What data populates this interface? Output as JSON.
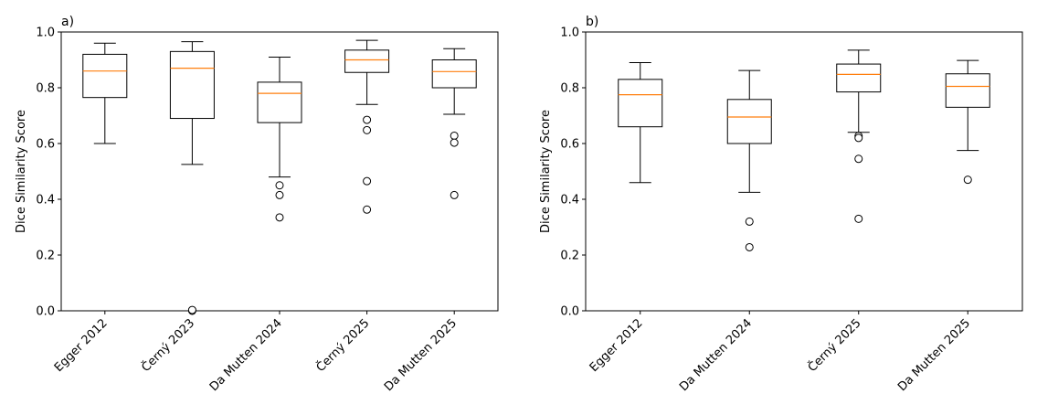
{
  "chart_data": [
    {
      "type": "box",
      "panel_label": "a)",
      "ylabel": "Dice Similarity Score",
      "xlabel": "",
      "ylim": [
        0,
        1.0
      ],
      "yticks": [
        "0.0",
        "0.2",
        "0.4",
        "0.6",
        "0.8",
        "1.0"
      ],
      "grid": false,
      "categories": [
        "Egger 2012",
        "Černý 2023",
        "Da Mutten 2024",
        "Černý 2025",
        "Da Mutten 2025"
      ],
      "boxes": [
        {
          "whisker_low": 0.6,
          "q1": 0.765,
          "median": 0.86,
          "q3": 0.92,
          "whisker_high": 0.96,
          "outliers": []
        },
        {
          "whisker_low": 0.525,
          "q1": 0.69,
          "median": 0.87,
          "q3": 0.93,
          "whisker_high": 0.965,
          "outliers": [
            0.0,
            0.003
          ]
        },
        {
          "whisker_low": 0.48,
          "q1": 0.675,
          "median": 0.78,
          "q3": 0.82,
          "whisker_high": 0.91,
          "outliers": [
            0.45,
            0.415,
            0.335
          ]
        },
        {
          "whisker_low": 0.74,
          "q1": 0.855,
          "median": 0.9,
          "q3": 0.935,
          "whisker_high": 0.97,
          "outliers": [
            0.685,
            0.648,
            0.465,
            0.363
          ]
        },
        {
          "whisker_low": 0.705,
          "q1": 0.8,
          "median": 0.858,
          "q3": 0.9,
          "whisker_high": 0.94,
          "outliers": [
            0.628,
            0.603,
            0.415
          ]
        }
      ]
    },
    {
      "type": "box",
      "panel_label": "b)",
      "ylabel": "Dice Similarity Score",
      "xlabel": "",
      "ylim": [
        0,
        1.0
      ],
      "yticks": [
        "0.0",
        "0.2",
        "0.4",
        "0.6",
        "0.8",
        "1.0"
      ],
      "grid": false,
      "categories": [
        "Egger 2012",
        "Da Mutten 2024",
        "Černý 2025",
        "Da Mutten 2025"
      ],
      "boxes": [
        {
          "whisker_low": 0.46,
          "q1": 0.66,
          "median": 0.775,
          "q3": 0.83,
          "whisker_high": 0.89,
          "outliers": []
        },
        {
          "whisker_low": 0.425,
          "q1": 0.6,
          "median": 0.695,
          "q3": 0.758,
          "whisker_high": 0.862,
          "outliers": [
            0.32,
            0.228
          ]
        },
        {
          "whisker_low": 0.64,
          "q1": 0.785,
          "median": 0.848,
          "q3": 0.885,
          "whisker_high": 0.935,
          "outliers": [
            0.627,
            0.62,
            0.545,
            0.33
          ]
        },
        {
          "whisker_low": 0.575,
          "q1": 0.73,
          "median": 0.805,
          "q3": 0.85,
          "whisker_high": 0.898,
          "outliers": [
            0.47
          ]
        }
      ]
    }
  ],
  "colors": {
    "box": "#000000",
    "median": "#ff7f0e",
    "outlier_face": "#ffffff",
    "outlier_edge": "#000000"
  }
}
